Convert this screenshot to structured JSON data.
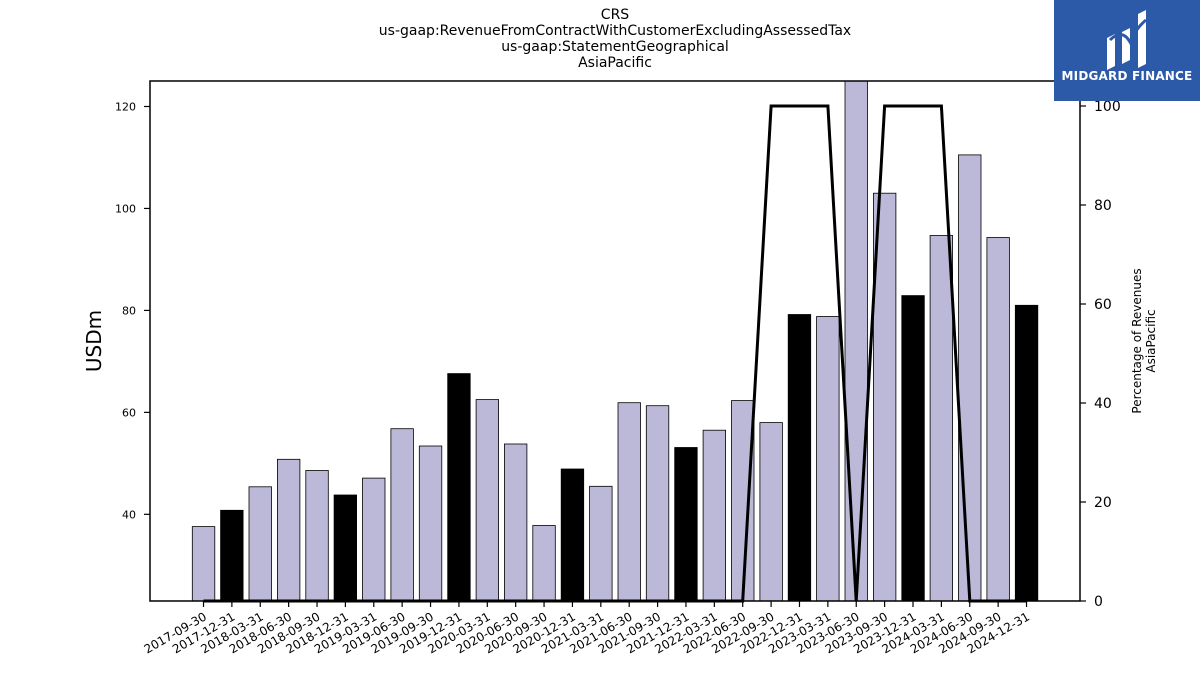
{
  "title_lines": [
    "CRS",
    "us-gaap:RevenueFromContractWithCustomerExcludingAssessedTax",
    "us-gaap:StatementGeographical",
    "AsiaPacific"
  ],
  "logo": {
    "text": "MIDGARD FINANCE",
    "background": "#2c5aa8"
  },
  "chart_data": {
    "type": "bar",
    "categories": [
      "2017-09-30",
      "2017-12-31",
      "2018-03-31",
      "2018-06-30",
      "2018-09-30",
      "2018-12-31",
      "2019-03-31",
      "2019-06-30",
      "2019-09-30",
      "2019-12-31",
      "2020-03-31",
      "2020-06-30",
      "2020-09-30",
      "2020-12-31",
      "2021-03-31",
      "2021-06-30",
      "2021-09-30",
      "2021-12-31",
      "2022-03-31",
      "2022-06-30",
      "2022-09-30",
      "2022-12-31",
      "2023-03-31",
      "2023-06-30",
      "2023-09-30",
      "2023-12-31",
      "2024-03-31",
      "2024-06-30",
      "2024-09-30",
      "2024-12-31"
    ],
    "values": [
      37.6,
      40.8,
      45.4,
      50.8,
      48.6,
      43.8,
      47.1,
      56.8,
      53.4,
      67.6,
      62.5,
      53.8,
      37.8,
      48.9,
      45.5,
      61.9,
      61.3,
      53.1,
      56.5,
      62.3,
      58.0,
      79.2,
      78.8,
      125.5,
      103.0,
      82.9,
      94.7,
      110.5,
      94.3,
      81.0
    ],
    "highlight": [
      false,
      true,
      false,
      false,
      false,
      true,
      false,
      false,
      false,
      true,
      false,
      false,
      false,
      true,
      false,
      false,
      false,
      true,
      false,
      false,
      false,
      true,
      false,
      false,
      false,
      true,
      false,
      false,
      false,
      true
    ],
    "line_values": [
      0,
      0,
      0,
      0,
      0,
      0,
      0,
      0,
      0,
      0,
      0,
      0,
      0,
      0,
      0,
      0,
      0,
      0,
      0,
      0,
      100,
      100,
      100,
      0,
      100,
      100,
      100,
      0,
      0,
      0
    ],
    "ylabel": "USDm",
    "y2label_lines": [
      "Percentage of Revenues",
      "AsiaPacific"
    ],
    "ylim": [
      23,
      125
    ],
    "y2lim": [
      0,
      100
    ],
    "yticks": [
      40,
      60,
      80,
      100,
      120
    ],
    "y2ticks": [
      0,
      20,
      40,
      60,
      80,
      100
    ],
    "colors": {
      "bar": "#bcb8d8",
      "bar_highlight": "#000000",
      "line": "#000000"
    }
  }
}
